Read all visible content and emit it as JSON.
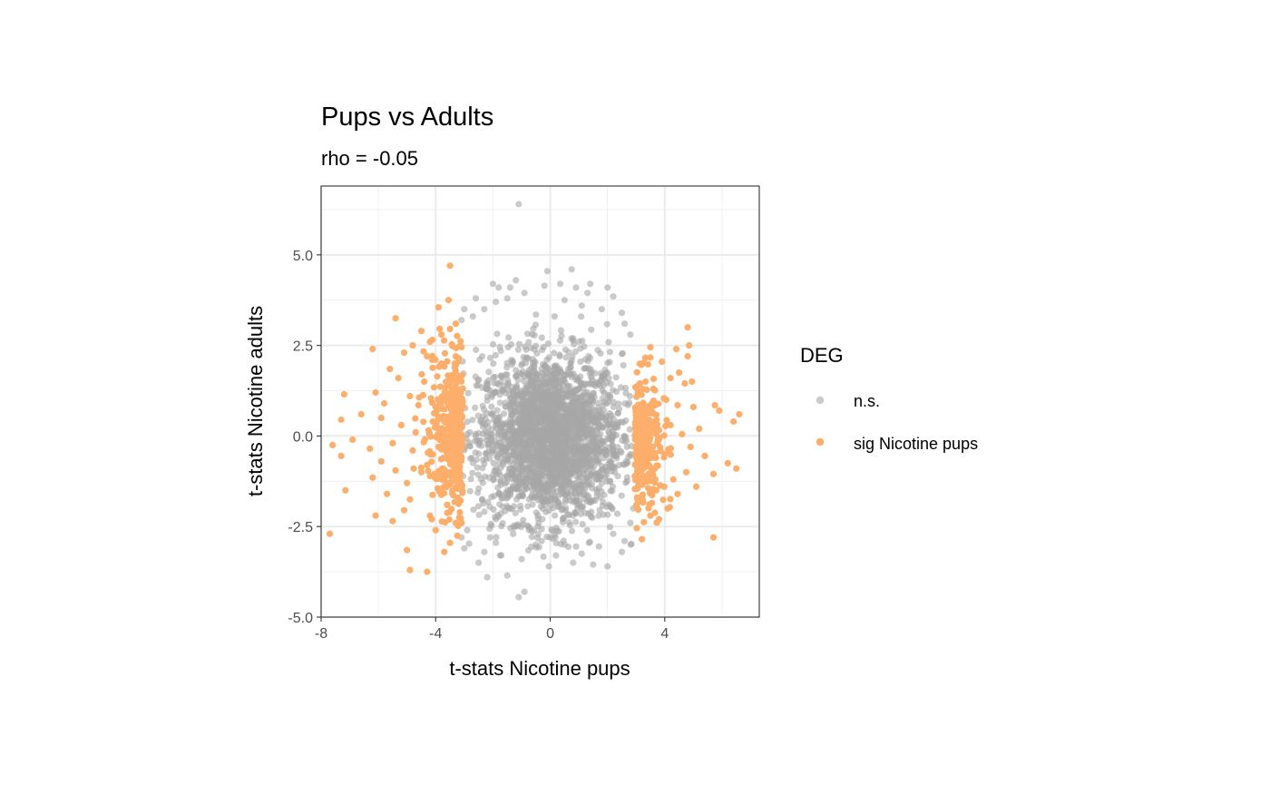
{
  "chart_data": {
    "type": "scatter",
    "title": "Pups vs Adults",
    "subtitle": "rho = -0.05",
    "xlabel": "t-stats Nicotine pups",
    "ylabel": "t-stats Nicotine adults",
    "xlim": [
      -8.0,
      7.3
    ],
    "ylim": [
      -5.0,
      6.9
    ],
    "x_ticks": [
      -8,
      -4,
      0,
      4
    ],
    "x_tick_labels": [
      "-8",
      "-4",
      "0",
      "4"
    ],
    "y_ticks": [
      -5.0,
      -2.5,
      0.0,
      2.5,
      5.0
    ],
    "y_tick_labels": [
      "-5.0",
      "-2.5",
      "0.0",
      "2.5",
      "5.0"
    ],
    "x_minor_ticks": [
      -6,
      -2,
      2,
      6
    ],
    "y_minor_ticks": [
      -3.75,
      -1.25,
      1.25,
      3.75,
      6.25
    ],
    "grid": true,
    "legend": {
      "title": "DEG",
      "position": "right",
      "entries": [
        {
          "label": "n.s.",
          "color": "#a6a6a6",
          "opacity": 0.6
        },
        {
          "label": "sig Nicotine pups",
          "color": "#fdae6b",
          "opacity": 1.0
        }
      ]
    },
    "series": [
      {
        "name": "n.s.",
        "color": "#a6a6a6",
        "points": [
          [
            -1.1,
            6.4
          ],
          [
            -1.2,
            4.3
          ],
          [
            -0.1,
            4.55
          ],
          [
            0.75,
            4.6
          ],
          [
            -1.4,
            4.1
          ],
          [
            1.4,
            4.2
          ],
          [
            -2.0,
            4.2
          ],
          [
            -1.8,
            4.1
          ],
          [
            -0.2,
            4.15
          ],
          [
            0.9,
            4.1
          ],
          [
            1.3,
            3.95
          ],
          [
            2.0,
            4.1
          ],
          [
            -1.5,
            3.8
          ],
          [
            0.35,
            4.2
          ],
          [
            1.1,
            3.6
          ],
          [
            -2.6,
            3.8
          ],
          [
            -1.9,
            3.7
          ],
          [
            2.2,
            3.85
          ],
          [
            -0.9,
            3.95
          ],
          [
            0.5,
            3.75
          ],
          [
            -3.0,
            3.5
          ],
          [
            2.5,
            3.4
          ],
          [
            -2.3,
            3.5
          ],
          [
            1.8,
            3.5
          ],
          [
            -2.7,
            3.3
          ],
          [
            2.8,
            2.8
          ],
          [
            -3.1,
            3.2
          ],
          [
            2.6,
            3.1
          ],
          [
            -0.5,
            3.35
          ],
          [
            0.15,
            3.3
          ],
          [
            -1.1,
            -4.45
          ],
          [
            -0.9,
            -4.3
          ],
          [
            -2.2,
            -3.9
          ],
          [
            -1.5,
            -3.85
          ],
          [
            -0.05,
            -3.6
          ],
          [
            0.8,
            -3.5
          ],
          [
            1.5,
            -3.55
          ],
          [
            2.0,
            -3.6
          ],
          [
            -2.5,
            -3.5
          ],
          [
            -1.75,
            -3.3
          ],
          [
            -1.0,
            -3.4
          ],
          [
            0.2,
            -3.3
          ],
          [
            1.1,
            -3.25
          ],
          [
            -3.0,
            -3.1
          ],
          [
            2.5,
            -3.2
          ],
          [
            -2.3,
            -3.2
          ],
          [
            1.7,
            -3.05
          ],
          [
            -3.1,
            -2.8
          ],
          [
            2.6,
            -2.9
          ],
          [
            -0.5,
            -3.0
          ],
          [
            0.5,
            -3.0
          ],
          [
            -1.9,
            -2.95
          ],
          [
            1.35,
            -2.95
          ],
          [
            2.8,
            -2.4
          ],
          [
            -2.9,
            -2.6
          ],
          [
            2.2,
            -2.7
          ],
          [
            -2.1,
            -2.8
          ],
          [
            0.9,
            -3.05
          ],
          [
            -0.3,
            -2.9
          ],
          [
            2.9,
            -2.0
          ]
        ]
      },
      {
        "name": "sig Nicotine pups",
        "color": "#fdae6b",
        "points": [
          [
            -3.5,
            4.7
          ],
          [
            -3.55,
            3.75
          ],
          [
            -3.9,
            3.55
          ],
          [
            -5.4,
            3.25
          ],
          [
            -3.3,
            3.1
          ],
          [
            -4.5,
            2.9
          ],
          [
            -3.8,
            2.8
          ],
          [
            -6.2,
            2.4
          ],
          [
            -5.1,
            2.3
          ],
          [
            -4.8,
            2.5
          ],
          [
            -4.3,
            2.2
          ],
          [
            -5.6,
            1.85
          ],
          [
            -5.3,
            1.6
          ],
          [
            -6.1,
            1.2
          ],
          [
            -4.9,
            1.1
          ],
          [
            -7.2,
            1.15
          ],
          [
            -5.8,
            0.9
          ],
          [
            -4.6,
            0.85
          ],
          [
            -6.6,
            0.6
          ],
          [
            -5.9,
            0.5
          ],
          [
            -7.3,
            0.45
          ],
          [
            -5.2,
            0.3
          ],
          [
            -4.7,
            0.1
          ],
          [
            -6.9,
            -0.1
          ],
          [
            -5.5,
            -0.2
          ],
          [
            -7.6,
            -0.25
          ],
          [
            -6.3,
            -0.35
          ],
          [
            -4.8,
            -0.4
          ],
          [
            -7.3,
            -0.55
          ],
          [
            -5.9,
            -0.7
          ],
          [
            -5.4,
            -0.95
          ],
          [
            -4.5,
            -1.0
          ],
          [
            -6.2,
            -1.15
          ],
          [
            -5.0,
            -1.3
          ],
          [
            -7.15,
            -1.5
          ],
          [
            -5.7,
            -1.6
          ],
          [
            -4.9,
            -1.75
          ],
          [
            -3.6,
            -1.9
          ],
          [
            -5.1,
            -2.05
          ],
          [
            -6.1,
            -2.2
          ],
          [
            -4.2,
            -2.2
          ],
          [
            -5.5,
            -2.35
          ],
          [
            -3.3,
            -2.4
          ],
          [
            -4.0,
            -2.6
          ],
          [
            -7.7,
            -2.7
          ],
          [
            -3.5,
            -2.95
          ],
          [
            -5.0,
            -3.15
          ],
          [
            -3.7,
            -3.2
          ],
          [
            -4.9,
            -3.7
          ],
          [
            -4.3,
            -3.75
          ],
          [
            -4.2,
            2.6
          ],
          [
            -3.8,
            2.0
          ],
          [
            -4.4,
            1.5
          ],
          [
            -3.6,
            1.0
          ],
          [
            -4.1,
            0.4
          ],
          [
            -3.9,
            -0.3
          ],
          [
            -4.3,
            -0.8
          ],
          [
            -3.7,
            -1.4
          ],
          [
            -4.05,
            -1.05
          ],
          [
            -3.4,
            0.7
          ],
          [
            4.8,
            3.0
          ],
          [
            4.85,
            2.5
          ],
          [
            4.4,
            2.4
          ],
          [
            3.5,
            2.45
          ],
          [
            4.8,
            2.2
          ],
          [
            3.9,
            2.05
          ],
          [
            4.5,
            1.75
          ],
          [
            4.2,
            1.6
          ],
          [
            4.7,
            1.45
          ],
          [
            4.95,
            1.5
          ],
          [
            3.6,
            1.3
          ],
          [
            4.05,
            1.0
          ],
          [
            4.45,
            0.85
          ],
          [
            5.0,
            0.8
          ],
          [
            5.75,
            0.85
          ],
          [
            5.9,
            0.7
          ],
          [
            6.6,
            0.6
          ],
          [
            6.4,
            0.4
          ],
          [
            5.2,
            0.2
          ],
          [
            4.6,
            0.05
          ],
          [
            3.8,
            -0.05
          ],
          [
            4.9,
            -0.3
          ],
          [
            5.4,
            -0.55
          ],
          [
            6.2,
            -0.75
          ],
          [
            6.5,
            -0.9
          ],
          [
            5.7,
            -1.05
          ],
          [
            4.75,
            -1.0
          ],
          [
            4.3,
            -1.2
          ],
          [
            5.1,
            -1.4
          ],
          [
            3.7,
            -1.5
          ],
          [
            4.45,
            -1.6
          ],
          [
            3.55,
            -1.85
          ],
          [
            4.1,
            -2.0
          ],
          [
            3.5,
            -2.2
          ],
          [
            3.8,
            -2.3
          ],
          [
            3.2,
            -2.85
          ],
          [
            5.7,
            -2.8
          ],
          [
            3.4,
            0.4
          ],
          [
            3.6,
            -0.6
          ],
          [
            4.2,
            0.3
          ]
        ]
      }
    ]
  }
}
